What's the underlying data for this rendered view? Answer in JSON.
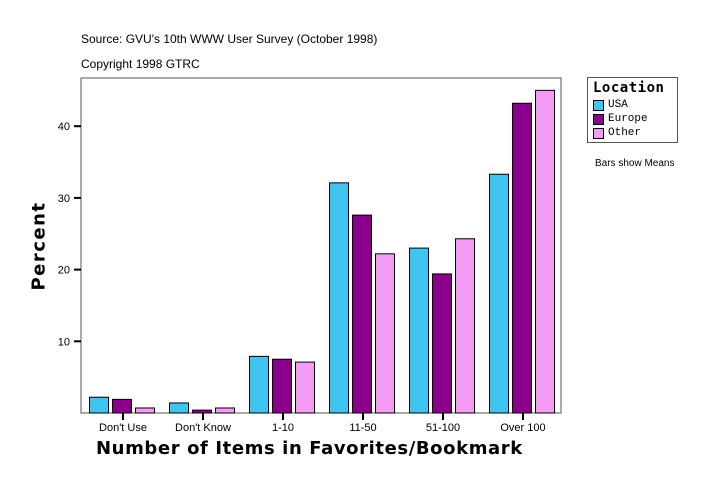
{
  "header": {
    "source": "Source: GVU's 10th WWW User Survey (October 1998)",
    "copyright": "Copyright 1998 GTRC"
  },
  "legend": {
    "title": "Location",
    "items": [
      {
        "label": "USA",
        "color": "#40c4f0"
      },
      {
        "label": "Europe",
        "color": "#8b008b"
      },
      {
        "label": "Other",
        "color": "#f49cf4"
      }
    ]
  },
  "note": "Bars show Means",
  "chart_data": {
    "type": "bar",
    "title": "",
    "xlabel": "Number of Items in Favorites/Bookmark",
    "ylabel": "Percent",
    "categories": [
      "Don't Use",
      "Don't Know",
      "1-10",
      "11-50",
      "51-100",
      "Over 100"
    ],
    "series": [
      {
        "name": "USA",
        "color": "#40c4f0",
        "values": [
          2.2,
          1.4,
          7.9,
          32.1,
          23.0,
          33.3
        ]
      },
      {
        "name": "Europe",
        "color": "#8b008b",
        "values": [
          1.9,
          0.4,
          7.5,
          27.6,
          19.4,
          43.2
        ]
      },
      {
        "name": "Other",
        "color": "#f49cf4",
        "values": [
          0.7,
          0.7,
          7.1,
          22.2,
          24.3,
          45.0
        ]
      }
    ],
    "yticks": [
      10,
      20,
      30,
      40
    ],
    "ylim": [
      0,
      46.5
    ],
    "grid": false,
    "legend_position": "right"
  }
}
